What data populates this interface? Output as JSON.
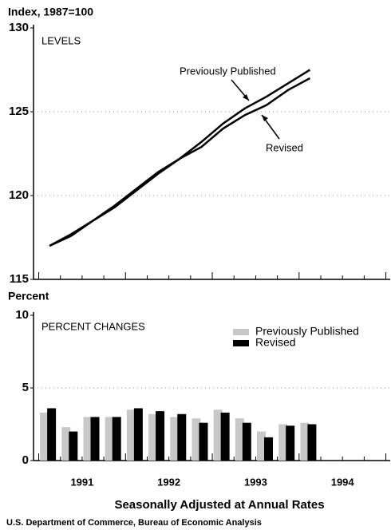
{
  "chart_data": [
    {
      "type": "line",
      "y_label": "Index, 1987=100",
      "panel_label": "LEVELS",
      "x": [
        1991.125,
        1991.375,
        1991.625,
        1991.875,
        1992.125,
        1992.375,
        1992.625,
        1992.875,
        1993.125,
        1993.375,
        1993.625,
        1993.875,
        1994.125
      ],
      "series": [
        {
          "name": "Previously Published",
          "color": "#000000",
          "values": [
            117.0,
            117.7,
            118.5,
            119.4,
            120.4,
            121.4,
            122.2,
            123.2,
            124.3,
            125.2,
            125.9,
            126.7,
            127.5
          ]
        },
        {
          "name": "Revised",
          "color": "#000000",
          "values": [
            117.0,
            117.6,
            118.5,
            119.3,
            120.3,
            121.3,
            122.2,
            122.9,
            124.0,
            124.8,
            125.4,
            126.3,
            127.0
          ]
        }
      ],
      "xlim": [
        1990.94,
        1995.05
      ],
      "ylim": [
        115,
        130
      ],
      "yticks": [
        115,
        120,
        125,
        130
      ],
      "grid": true
    },
    {
      "type": "bar",
      "y_label": "Percent",
      "panel_label": "PERCENT CHANGES",
      "x": [
        1991.125,
        1991.375,
        1991.625,
        1991.875,
        1992.125,
        1992.375,
        1992.625,
        1992.875,
        1993.125,
        1993.375,
        1993.625,
        1993.875,
        1994.125
      ],
      "series": [
        {
          "name": "Previously Published",
          "color": "#c8c8c8",
          "values": [
            3.3,
            2.3,
            3.0,
            3.0,
            3.5,
            3.2,
            3.0,
            2.9,
            3.5,
            2.9,
            2.0,
            2.5,
            2.6
          ]
        },
        {
          "name": "Revised",
          "color": "#000000",
          "values": [
            3.6,
            2.0,
            3.0,
            3.0,
            3.6,
            3.4,
            3.2,
            2.6,
            3.3,
            2.6,
            1.6,
            2.4,
            2.5
          ]
        }
      ],
      "xlim": [
        1990.94,
        1995.05
      ],
      "xticks": [
        {
          "value": 1991.5,
          "label": "1991"
        },
        {
          "value": 1992.5,
          "label": "1992"
        },
        {
          "value": 1993.5,
          "label": "1993"
        },
        {
          "value": 1994.5,
          "label": "1994"
        }
      ],
      "ylim": [
        0,
        10
      ],
      "yticks": [
        0,
        5,
        10
      ],
      "grid": true,
      "x_label": "Seasonally Adjusted at Annual Rates"
    }
  ],
  "source": "U.S. Department of Commerce, Bureau of Economic Analysis"
}
